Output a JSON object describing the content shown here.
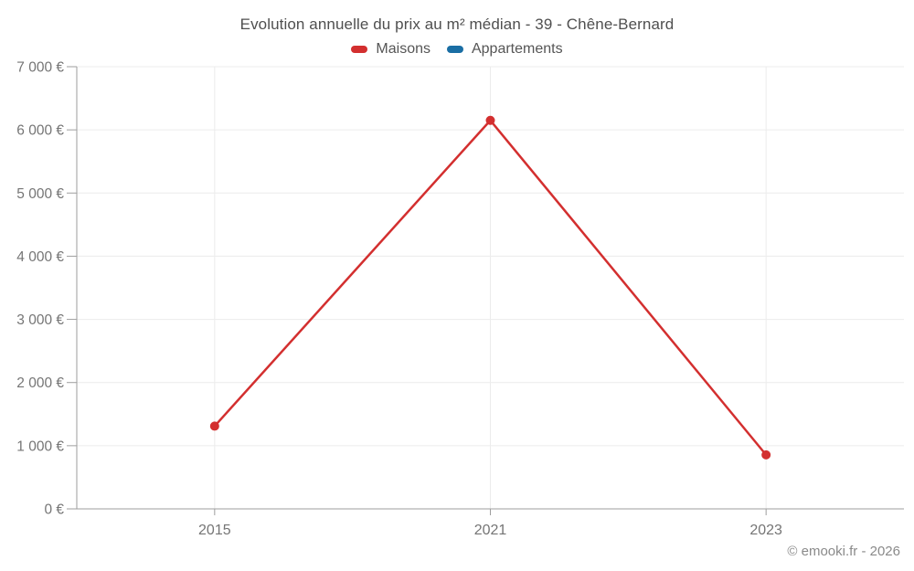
{
  "chart": {
    "title": "Evolution annuelle du prix au m² médian - 39 - Chêne-Bernard",
    "legend": [
      {
        "label": "Maisons",
        "color": "#d32f2f"
      },
      {
        "label": "Appartements",
        "color": "#1a6ea4"
      }
    ],
    "footer": "© emooki.fr - 2026"
  },
  "chart_data": {
    "type": "line",
    "categories": [
      "2015",
      "2021",
      "2023"
    ],
    "series": [
      {
        "name": "Maisons",
        "color": "#d32f2f",
        "values": [
          1310,
          6150,
          855
        ]
      },
      {
        "name": "Appartements",
        "color": "#1a6ea4",
        "values": []
      }
    ],
    "title": "Evolution annuelle du prix au m² médian - 39 - Chêne-Bernard",
    "xlabel": "",
    "ylabel": "",
    "ytick_format": "{n} €",
    "ylim": [
      0,
      7000
    ],
    "ytick_step": 1000,
    "grid": true,
    "legend_position": "top"
  },
  "colors": {
    "grid": "#ececec",
    "axis": "#9e9e9e",
    "tick_text": "#757575",
    "title_text": "#4f4f4f",
    "footer_text": "#8a8a8a",
    "background": "#ffffff"
  }
}
